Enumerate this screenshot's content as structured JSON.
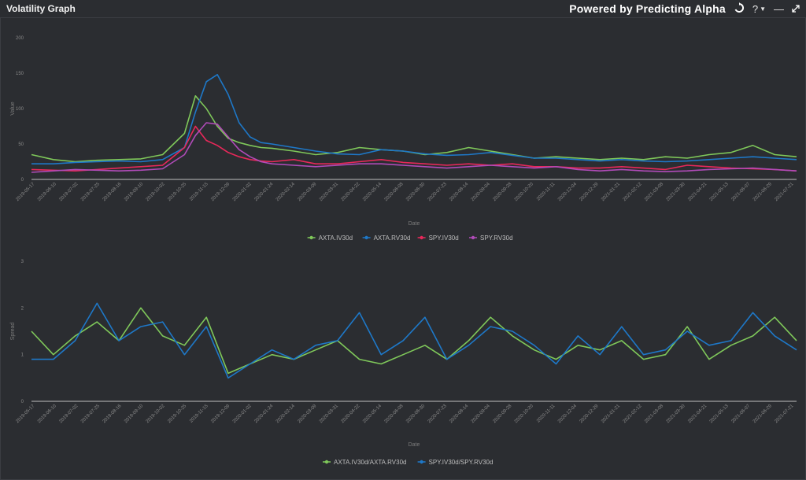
{
  "window": {
    "title": "Volatility Graph",
    "powered_by": "Powered by Predicting Alpha",
    "help_label": "?",
    "controls": {
      "refresh_icon": "refresh-icon",
      "minimize_icon": "minimize-icon",
      "expand_icon": "expand-icon"
    }
  },
  "colors": {
    "background": "#2b2d31",
    "green": "#7fc85a",
    "blue": "#1e78c8",
    "red": "#e8285a",
    "magenta": "#b04bb8"
  },
  "chart_data": [
    {
      "type": "line",
      "title": "",
      "xlabel": "Date",
      "ylabel": "Value",
      "ylim": [
        0,
        200
      ],
      "yticks": [
        0,
        50,
        100,
        150,
        200
      ],
      "xlim": [
        0,
        35
      ],
      "x": [
        0,
        1,
        2,
        3,
        4,
        5,
        6,
        7,
        7.5,
        8,
        8.5,
        9,
        9.5,
        10,
        10.5,
        11,
        12,
        13,
        14,
        15,
        16,
        17,
        18,
        19,
        20,
        21,
        22,
        23,
        24,
        25,
        26,
        27,
        28,
        29,
        30,
        31,
        32,
        33,
        34,
        35
      ],
      "series": [
        {
          "name": "AXTA.IV30d",
          "color": "#7fc85a",
          "values": [
            35,
            28,
            25,
            27,
            28,
            29,
            35,
            65,
            118,
            100,
            75,
            58,
            52,
            48,
            45,
            44,
            40,
            35,
            38,
            45,
            42,
            40,
            35,
            38,
            45,
            40,
            35,
            30,
            32,
            30,
            28,
            30,
            28,
            32,
            30,
            35,
            38,
            48,
            35,
            32
          ]
        },
        {
          "name": "AXTA.RV30d",
          "color": "#1e78c8",
          "values": [
            22,
            22,
            24,
            25,
            26,
            25,
            28,
            45,
            95,
            138,
            148,
            120,
            80,
            60,
            52,
            50,
            45,
            40,
            36,
            35,
            42,
            40,
            36,
            34,
            35,
            38,
            34,
            30,
            30,
            28,
            26,
            28,
            26,
            25,
            26,
            28,
            30,
            32,
            30,
            28
          ]
        },
        {
          "name": "SPY.IV30d",
          "color": "#e8285a",
          "values": [
            14,
            13,
            12,
            14,
            16,
            18,
            20,
            45,
            75,
            55,
            48,
            38,
            32,
            28,
            26,
            25,
            28,
            22,
            22,
            25,
            28,
            24,
            22,
            20,
            22,
            20,
            22,
            18,
            18,
            16,
            16,
            18,
            16,
            14,
            20,
            18,
            16,
            15,
            14,
            12
          ]
        },
        {
          "name": "SPY.RV30d",
          "color": "#b04bb8",
          "values": [
            10,
            12,
            14,
            13,
            12,
            13,
            15,
            35,
            62,
            80,
            78,
            60,
            42,
            32,
            25,
            22,
            20,
            18,
            20,
            22,
            22,
            20,
            18,
            16,
            18,
            20,
            18,
            16,
            18,
            14,
            12,
            14,
            12,
            11,
            12,
            14,
            15,
            16,
            14,
            12
          ]
        }
      ],
      "x_ticks": [
        "2019-05-17",
        "2019-06-10",
        "2019-07-02",
        "2019-07-25",
        "2019-08-16",
        "2019-09-10",
        "2019-10-02",
        "2019-10-25",
        "2019-11-15",
        "2019-12-09",
        "2020-01-02",
        "2020-01-24",
        "2020-02-14",
        "2020-03-09",
        "2020-03-31",
        "2020-04-22",
        "2020-05-14",
        "2020-06-08",
        "2020-06-30",
        "2020-07-23",
        "2020-08-14",
        "2020-09-04",
        "2020-09-28",
        "2020-10-20",
        "2020-11-11",
        "2020-12-04",
        "2020-12-29",
        "2021-01-21",
        "2021-02-12",
        "2021-03-08",
        "2021-03-30",
        "2021-04-21",
        "2021-05-13",
        "2021-06-07",
        "2021-06-29",
        "2021-07-21"
      ]
    },
    {
      "type": "line",
      "title": "",
      "xlabel": "Date",
      "ylabel": "Spread",
      "ylim": [
        0,
        3
      ],
      "yticks": [
        0,
        1,
        2,
        3
      ],
      "xlim": [
        0,
        35
      ],
      "x": [
        0,
        1,
        2,
        3,
        4,
        5,
        6,
        7,
        8,
        9,
        10,
        11,
        12,
        13,
        14,
        15,
        16,
        17,
        18,
        19,
        20,
        21,
        22,
        23,
        24,
        25,
        26,
        27,
        28,
        29,
        30,
        31,
        32,
        33,
        34,
        35
      ],
      "series": [
        {
          "name": "AXTA.IV30d/AXTA.RV30d",
          "color": "#7fc85a",
          "values": [
            1.5,
            1.0,
            1.4,
            1.7,
            1.3,
            2.0,
            1.4,
            1.2,
            1.8,
            0.6,
            0.8,
            1.0,
            0.9,
            1.1,
            1.3,
            0.9,
            0.8,
            1.0,
            1.2,
            0.9,
            1.3,
            1.8,
            1.4,
            1.1,
            0.9,
            1.2,
            1.1,
            1.3,
            0.9,
            1.0,
            1.6,
            0.9,
            1.2,
            1.4,
            1.8,
            1.3
          ]
        },
        {
          "name": "SPY.IV30d/SPY.RV30d",
          "color": "#1e78c8",
          "values": [
            0.9,
            0.9,
            1.3,
            2.1,
            1.3,
            1.6,
            1.7,
            1.0,
            1.6,
            0.5,
            0.8,
            1.1,
            0.9,
            1.2,
            1.3,
            1.9,
            1.0,
            1.3,
            1.8,
            0.9,
            1.2,
            1.6,
            1.5,
            1.2,
            0.8,
            1.4,
            1.0,
            1.6,
            1.0,
            1.1,
            1.5,
            1.2,
            1.3,
            1.9,
            1.4,
            1.1
          ]
        }
      ],
      "x_ticks": [
        "2019-05-17",
        "2019-06-10",
        "2019-07-02",
        "2019-07-25",
        "2019-08-16",
        "2019-09-10",
        "2019-10-02",
        "2019-10-25",
        "2019-11-15",
        "2019-12-09",
        "2020-01-02",
        "2020-01-24",
        "2020-02-14",
        "2020-03-09",
        "2020-03-31",
        "2020-04-22",
        "2020-05-14",
        "2020-06-08",
        "2020-06-30",
        "2020-07-23",
        "2020-08-14",
        "2020-09-04",
        "2020-09-28",
        "2020-10-20",
        "2020-11-11",
        "2020-12-04",
        "2020-12-29",
        "2021-01-21",
        "2021-02-12",
        "2021-03-08",
        "2021-03-30",
        "2021-04-21",
        "2021-05-13",
        "2021-06-07",
        "2021-06-29",
        "2021-07-21"
      ]
    }
  ]
}
